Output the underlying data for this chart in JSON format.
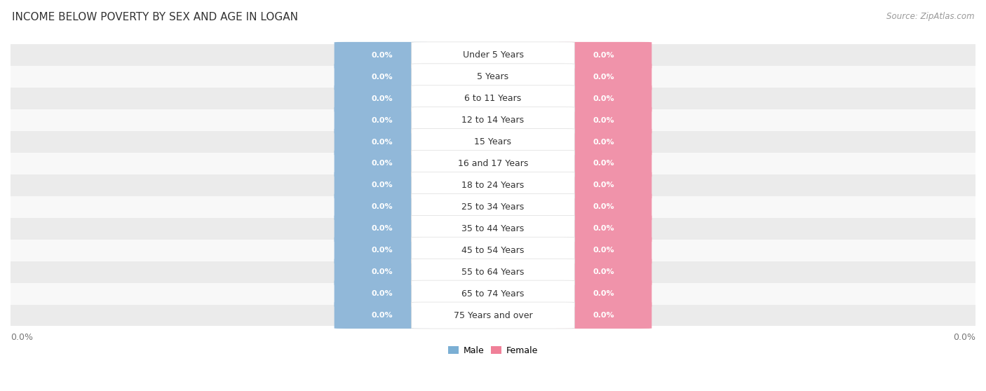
{
  "title": "INCOME BELOW POVERTY BY SEX AND AGE IN LOGAN",
  "source_text": "Source: ZipAtlas.com",
  "categories": [
    "Under 5 Years",
    "5 Years",
    "6 to 11 Years",
    "12 to 14 Years",
    "15 Years",
    "16 and 17 Years",
    "18 to 24 Years",
    "25 to 34 Years",
    "35 to 44 Years",
    "45 to 54 Years",
    "55 to 64 Years",
    "65 to 74 Years",
    "75 Years and over"
  ],
  "male_values": [
    0.0,
    0.0,
    0.0,
    0.0,
    0.0,
    0.0,
    0.0,
    0.0,
    0.0,
    0.0,
    0.0,
    0.0,
    0.0
  ],
  "female_values": [
    0.0,
    0.0,
    0.0,
    0.0,
    0.0,
    0.0,
    0.0,
    0.0,
    0.0,
    0.0,
    0.0,
    0.0,
    0.0
  ],
  "male_pill_color": "#91b8d9",
  "female_pill_color": "#f093aa",
  "category_bg_color": "#ffffff",
  "row_bg_light": "#ebebeb",
  "row_bg_white": "#f8f8f8",
  "title_color": "#333333",
  "axis_label_color": "#777777",
  "source_color": "#999999",
  "label_fontsize": 9,
  "title_fontsize": 11,
  "category_fontsize": 9,
  "value_fontsize": 8,
  "legend_male_color": "#7bafd4",
  "legend_female_color": "#f08098",
  "xlim_label_left": "0.0%",
  "xlim_label_right": "0.0%"
}
